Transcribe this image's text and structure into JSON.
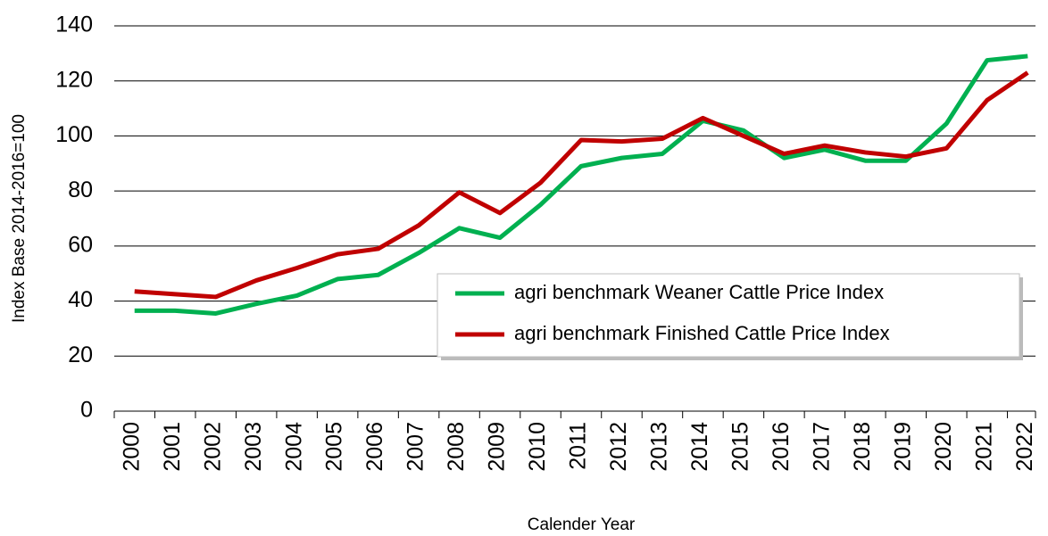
{
  "chart_data": {
    "type": "line",
    "x_label": "Calender Year",
    "y_label": "Index Base 2014-2016=100",
    "categories": [
      "2000",
      "2001",
      "2002",
      "2003",
      "2004",
      "2005",
      "2006",
      "2007",
      "2008",
      "2009",
      "2010",
      "2011",
      "2012",
      "2013",
      "2014",
      "2015",
      "2016",
      "2017",
      "2018",
      "2019",
      "2020",
      "2021",
      "2022"
    ],
    "series": [
      {
        "name": "agri benchmark Weaner Cattle Price Index",
        "color": "#00b050",
        "values": [
          36.5,
          36.5,
          35.5,
          39,
          42,
          48,
          49.5,
          57.5,
          66.5,
          63,
          75,
          89,
          92,
          93.5,
          105.5,
          102,
          92,
          95,
          91,
          91,
          104.5,
          127.5,
          129
        ]
      },
      {
        "name": "agri benchmark Finished Cattle Price Index",
        "color": "#c00000",
        "values": [
          43.5,
          42.5,
          41.5,
          47.5,
          52,
          57,
          59,
          67.5,
          79.5,
          72,
          83,
          98.5,
          98,
          99,
          106.5,
          100,
          93.5,
          96.5,
          94,
          92.5,
          95.5,
          113,
          123
        ]
      }
    ],
    "ylim": [
      0,
      140
    ],
    "yticks": [
      0,
      20,
      40,
      60,
      80,
      100,
      120,
      140
    ],
    "grid": true
  }
}
